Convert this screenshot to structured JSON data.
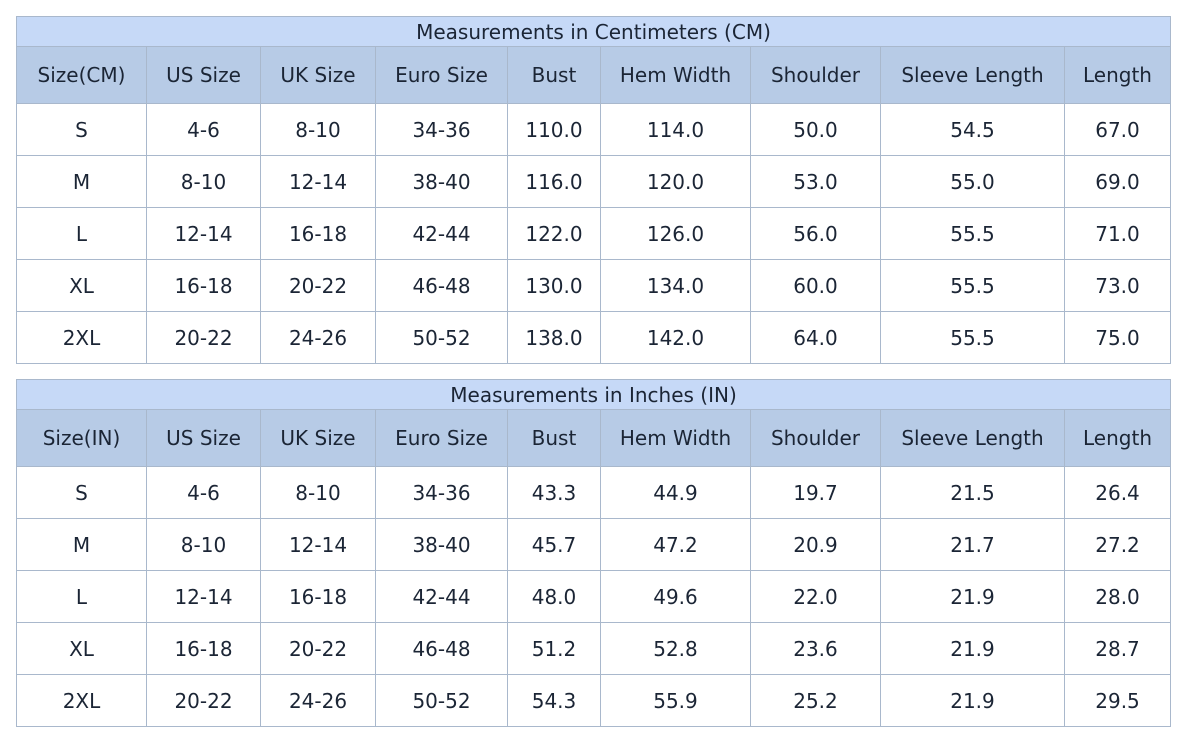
{
  "tables": [
    {
      "title": "Measurements in Centimeters (CM)",
      "headers": [
        "Size(CM)",
        "US Size",
        "UK Size",
        "Euro Size",
        "Bust",
        "Hem Width",
        "Shoulder",
        "Sleeve Length",
        "Length"
      ],
      "rows": [
        [
          "S",
          "4-6",
          "8-10",
          "34-36",
          "110.0",
          "114.0",
          "50.0",
          "54.5",
          "67.0"
        ],
        [
          "M",
          "8-10",
          "12-14",
          "38-40",
          "116.0",
          "120.0",
          "53.0",
          "55.0",
          "69.0"
        ],
        [
          "L",
          "12-14",
          "16-18",
          "42-44",
          "122.0",
          "126.0",
          "56.0",
          "55.5",
          "71.0"
        ],
        [
          "XL",
          "16-18",
          "20-22",
          "46-48",
          "130.0",
          "134.0",
          "60.0",
          "55.5",
          "73.0"
        ],
        [
          "2XL",
          "20-22",
          "24-26",
          "50-52",
          "138.0",
          "142.0",
          "64.0",
          "55.5",
          "75.0"
        ]
      ]
    },
    {
      "title": "Measurements in Inches (IN)",
      "headers": [
        "Size(IN)",
        "US Size",
        "UK Size",
        "Euro Size",
        "Bust",
        "Hem Width",
        "Shoulder",
        "Sleeve Length",
        "Length"
      ],
      "rows": [
        [
          "S",
          "4-6",
          "8-10",
          "34-36",
          "43.3",
          "44.9",
          "19.7",
          "21.5",
          "26.4"
        ],
        [
          "M",
          "8-10",
          "12-14",
          "38-40",
          "45.7",
          "47.2",
          "20.9",
          "21.7",
          "27.2"
        ],
        [
          "L",
          "12-14",
          "16-18",
          "42-44",
          "48.0",
          "49.6",
          "22.0",
          "21.9",
          "28.0"
        ],
        [
          "XL",
          "16-18",
          "20-22",
          "46-48",
          "51.2",
          "52.8",
          "23.6",
          "21.9",
          "28.7"
        ],
        [
          "2XL",
          "20-22",
          "24-26",
          "50-52",
          "54.3",
          "55.9",
          "25.2",
          "21.9",
          "29.5"
        ]
      ]
    }
  ]
}
